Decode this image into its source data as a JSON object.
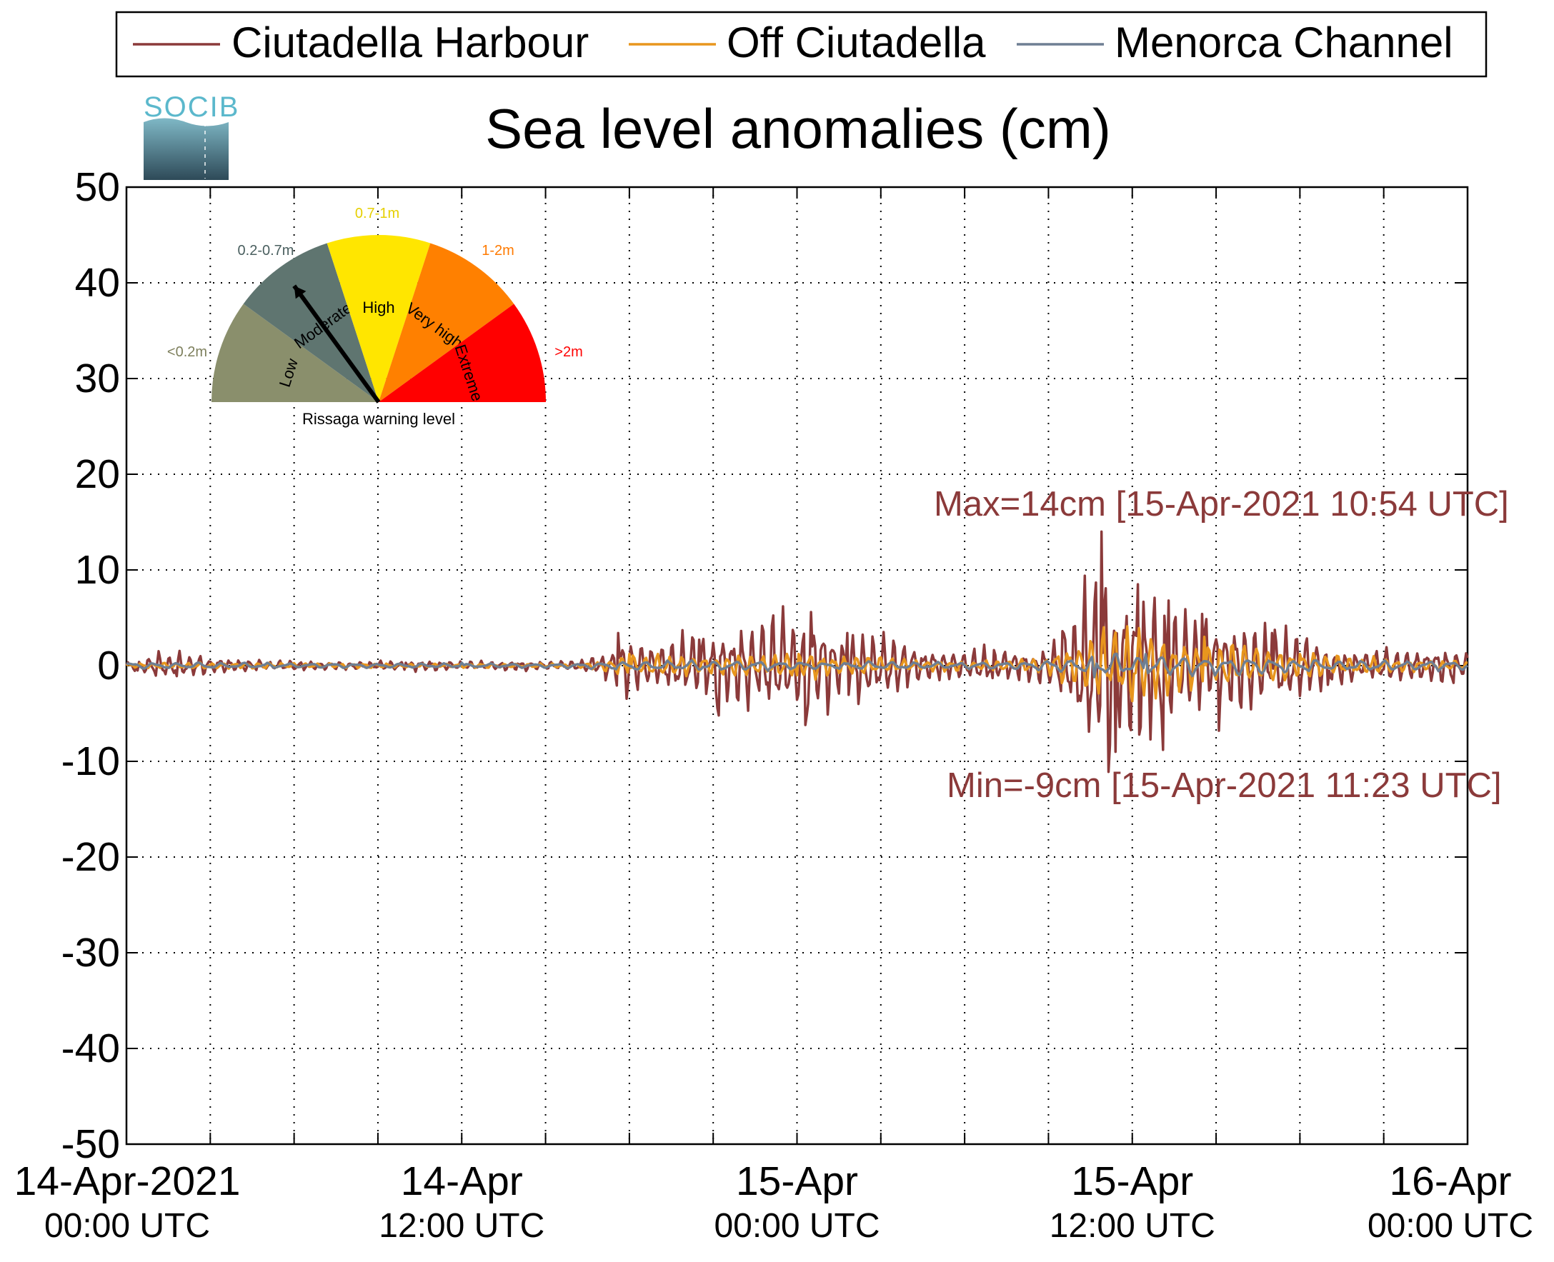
{
  "logo": {
    "text": "SOCIB"
  },
  "legend": {
    "items": [
      {
        "label": "Ciutadella Harbour",
        "color": "#8b3a3a"
      },
      {
        "label": "Off Ciutadella",
        "color": "#e8961e"
      },
      {
        "label": "Menorca Channel",
        "color": "#6e7f93"
      }
    ]
  },
  "gauge": {
    "caption": "Rissaga warning level",
    "needle_level": "Moderate",
    "segments": [
      {
        "name": "Low",
        "range": "<0.2m",
        "color": "#8a8f6c",
        "range_color": "#7d7f5c"
      },
      {
        "name": "Moderate",
        "range": "0.2-0.7m",
        "color": "#5f7570",
        "range_color": "#4a5f5f"
      },
      {
        "name": "High",
        "range": "0.7-1m",
        "color": "#ffe600",
        "range_color": "#e6cf00"
      },
      {
        "name": "Very high",
        "range": "1-2m",
        "color": "#ff8000",
        "range_color": "#ff7a00"
      },
      {
        "name": "Extreme",
        "range": ">2m",
        "color": "#ff0000",
        "range_color": "#ff0000"
      }
    ]
  },
  "chart_data": {
    "type": "line",
    "title": "Sea level anomalies (cm)",
    "xlabel": "",
    "ylabel": "",
    "ylim": [
      -50,
      50
    ],
    "yticks": [
      -50,
      -40,
      -30,
      -20,
      -10,
      0,
      10,
      20,
      30,
      40,
      50
    ],
    "x_range_hours": [
      0,
      48
    ],
    "x_tick_labels": [
      {
        "hour": 0,
        "line1": "14-Apr-2021",
        "line2": "00:00 UTC"
      },
      {
        "hour": 12,
        "line1": "14-Apr",
        "line2": "12:00 UTC"
      },
      {
        "hour": 24,
        "line1": "15-Apr",
        "line2": "00:00 UTC"
      },
      {
        "hour": 36,
        "line1": "15-Apr",
        "line2": "12:00 UTC"
      },
      {
        "hour": 48,
        "line1": "16-Apr",
        "line2": "00:00 UTC"
      }
    ],
    "grid": true,
    "legend_position": "top",
    "annotations": {
      "max": {
        "text": "Max=14cm [15-Apr-2021 10:54 UTC]",
        "value": 14,
        "hour": 34.9
      },
      "min": {
        "text": "Min=-9cm [15-Apr-2021 11:23 UTC]",
        "value": -9,
        "hour": 35.38
      }
    },
    "series": [
      {
        "name": "Ciutadella Harbour",
        "color": "#8b3a3a",
        "envelope": [
          [
            0,
            0.4
          ],
          [
            1,
            1.3
          ],
          [
            2,
            1.2
          ],
          [
            3,
            0.8
          ],
          [
            4,
            0.6
          ],
          [
            5,
            0.5
          ],
          [
            6,
            0.5
          ],
          [
            7,
            0.4
          ],
          [
            8,
            0.4
          ],
          [
            9,
            0.4
          ],
          [
            10,
            0.5
          ],
          [
            11,
            0.5
          ],
          [
            12,
            0.4
          ],
          [
            13,
            0.4
          ],
          [
            14,
            0.5
          ],
          [
            15,
            0.5
          ],
          [
            16,
            0.4
          ],
          [
            17,
            1.0
          ],
          [
            17.5,
            2.5
          ],
          [
            18,
            3.0
          ],
          [
            19,
            2.0
          ],
          [
            20,
            3.0
          ],
          [
            21,
            3.5
          ],
          [
            22,
            3.8
          ],
          [
            23,
            4.5
          ],
          [
            24,
            5.2
          ],
          [
            25,
            4.0
          ],
          [
            26,
            3.5
          ],
          [
            27,
            3.5
          ],
          [
            28,
            2.0
          ],
          [
            29,
            1.5
          ],
          [
            30,
            1.5
          ],
          [
            31,
            1.8
          ],
          [
            32,
            1.2
          ],
          [
            33,
            2.0
          ],
          [
            34,
            5.5
          ],
          [
            34.9,
            11.0
          ],
          [
            35.5,
            8.5
          ],
          [
            36,
            8.0
          ],
          [
            37,
            6.5
          ],
          [
            38,
            5.5
          ],
          [
            39,
            4.5
          ],
          [
            40,
            4.0
          ],
          [
            41,
            3.5
          ],
          [
            42,
            3.0
          ],
          [
            43,
            2.0
          ],
          [
            44,
            1.5
          ],
          [
            45,
            1.5
          ],
          [
            46,
            1.5
          ],
          [
            47,
            1.8
          ],
          [
            48,
            1.8
          ]
        ],
        "points": [
          [
            0,
            0.0
          ],
          [
            0.4,
            -0.5
          ],
          [
            1.2,
            0.8
          ],
          [
            1.8,
            -1.1
          ],
          [
            3.0,
            0.4
          ],
          [
            5.0,
            -0.3
          ],
          [
            8.0,
            0.2
          ],
          [
            10.0,
            0.3
          ],
          [
            12.0,
            0.2
          ],
          [
            14.0,
            0.2
          ],
          [
            16.0,
            0.1
          ],
          [
            17.6,
            3.4
          ],
          [
            19.0,
            -1.8
          ],
          [
            20.5,
            2.7
          ],
          [
            21.2,
            -5.2
          ],
          [
            22.8,
            3.6
          ],
          [
            24.5,
            5.6
          ],
          [
            24.3,
            -6.2
          ],
          [
            25.8,
            3.4
          ],
          [
            26.2,
            -4.0
          ],
          [
            28.2,
            1.4
          ],
          [
            30.0,
            1.1
          ],
          [
            31.0,
            -1.3
          ],
          [
            32.0,
            0.3
          ],
          [
            33.5,
            3.6
          ],
          [
            34.9,
            14.0
          ],
          [
            35.38,
            -9.0
          ],
          [
            36.2,
            8.5
          ],
          [
            37.3,
            6.8
          ],
          [
            37.1,
            -8.8
          ],
          [
            38.5,
            5.4
          ],
          [
            39.1,
            -6.8
          ],
          [
            41.0,
            3.4
          ],
          [
            43.0,
            -2.0
          ],
          [
            45.5,
            1.3
          ],
          [
            47.5,
            -1.8
          ],
          [
            48,
            0.8
          ]
        ]
      },
      {
        "name": "Off Ciutadella",
        "color": "#e8961e",
        "envelope": [
          [
            0,
            0.2
          ],
          [
            2,
            0.3
          ],
          [
            10,
            0.2
          ],
          [
            16,
            0.2
          ],
          [
            17,
            0.5
          ],
          [
            18,
            1.2
          ],
          [
            20,
            0.9
          ],
          [
            22,
            1.0
          ],
          [
            24,
            1.2
          ],
          [
            26,
            1.0
          ],
          [
            28,
            0.6
          ],
          [
            30,
            0.5
          ],
          [
            32,
            0.6
          ],
          [
            33,
            0.8
          ],
          [
            34,
            2.5
          ],
          [
            35,
            3.3
          ],
          [
            36,
            3.5
          ],
          [
            37,
            2.8
          ],
          [
            38,
            2.6
          ],
          [
            40,
            2.2
          ],
          [
            42,
            1.4
          ],
          [
            44,
            0.9
          ],
          [
            46,
            0.6
          ],
          [
            48,
            0.4
          ]
        ],
        "points": [
          [
            0,
            0.0
          ],
          [
            18.0,
            1.2
          ],
          [
            24.0,
            -1.0
          ],
          [
            35.0,
            4.0
          ],
          [
            36.0,
            -3.7
          ],
          [
            38.6,
            3.0
          ],
          [
            42.0,
            1.2
          ],
          [
            48,
            0.3
          ]
        ]
      },
      {
        "name": "Menorca Channel",
        "color": "#6e7f93",
        "envelope": [
          [
            0,
            0.3
          ],
          [
            10,
            0.2
          ],
          [
            16,
            0.2
          ],
          [
            18,
            0.5
          ],
          [
            24,
            0.4
          ],
          [
            30,
            0.3
          ],
          [
            33,
            0.5
          ],
          [
            35,
            1.1
          ],
          [
            38,
            1.0
          ],
          [
            42,
            0.6
          ],
          [
            46,
            0.5
          ],
          [
            48,
            0.4
          ]
        ],
        "points": [
          [
            0,
            0.2
          ],
          [
            12,
            0.3
          ],
          [
            24,
            0.2
          ],
          [
            34.6,
            -1.2
          ],
          [
            36.5,
            1.2
          ],
          [
            48,
            0.0
          ]
        ]
      }
    ]
  }
}
